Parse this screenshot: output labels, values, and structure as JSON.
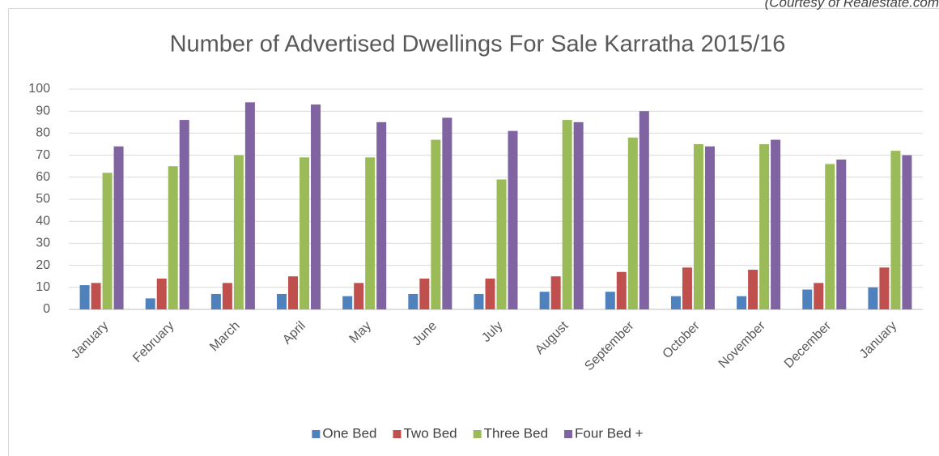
{
  "chart_data": {
    "type": "bar",
    "note": "(Courtesy of Realestate.com",
    "title": "Number of Advertised Dwellings For Sale Karratha 2015/16",
    "categories": [
      "January",
      "February",
      "March",
      "April",
      "May",
      "June",
      "July",
      "August",
      "September",
      "October",
      "November",
      "December",
      "January"
    ],
    "series": [
      {
        "name": "One Bed",
        "color": "#4f81bd",
        "values": [
          11,
          5,
          7,
          7,
          6,
          7,
          7,
          8,
          8,
          6,
          6,
          9,
          10
        ]
      },
      {
        "name": "Two Bed",
        "color": "#c0504d",
        "values": [
          12,
          14,
          12,
          15,
          12,
          14,
          14,
          15,
          17,
          19,
          18,
          12,
          19
        ]
      },
      {
        "name": "Three Bed",
        "color": "#9bbb59",
        "values": [
          62,
          65,
          70,
          69,
          69,
          77,
          59,
          86,
          78,
          75,
          75,
          66,
          72
        ]
      },
      {
        "name": "Four  Bed +",
        "color": "#8064a2",
        "values": [
          74,
          86,
          94,
          93,
          85,
          87,
          81,
          85,
          90,
          74,
          77,
          68,
          70
        ]
      }
    ],
    "ylim": [
      0,
      100
    ],
    "yticks": [
      0,
      10,
      20,
      30,
      40,
      50,
      60,
      70,
      80,
      90,
      100
    ],
    "grid": true,
    "legend": "bottom"
  }
}
